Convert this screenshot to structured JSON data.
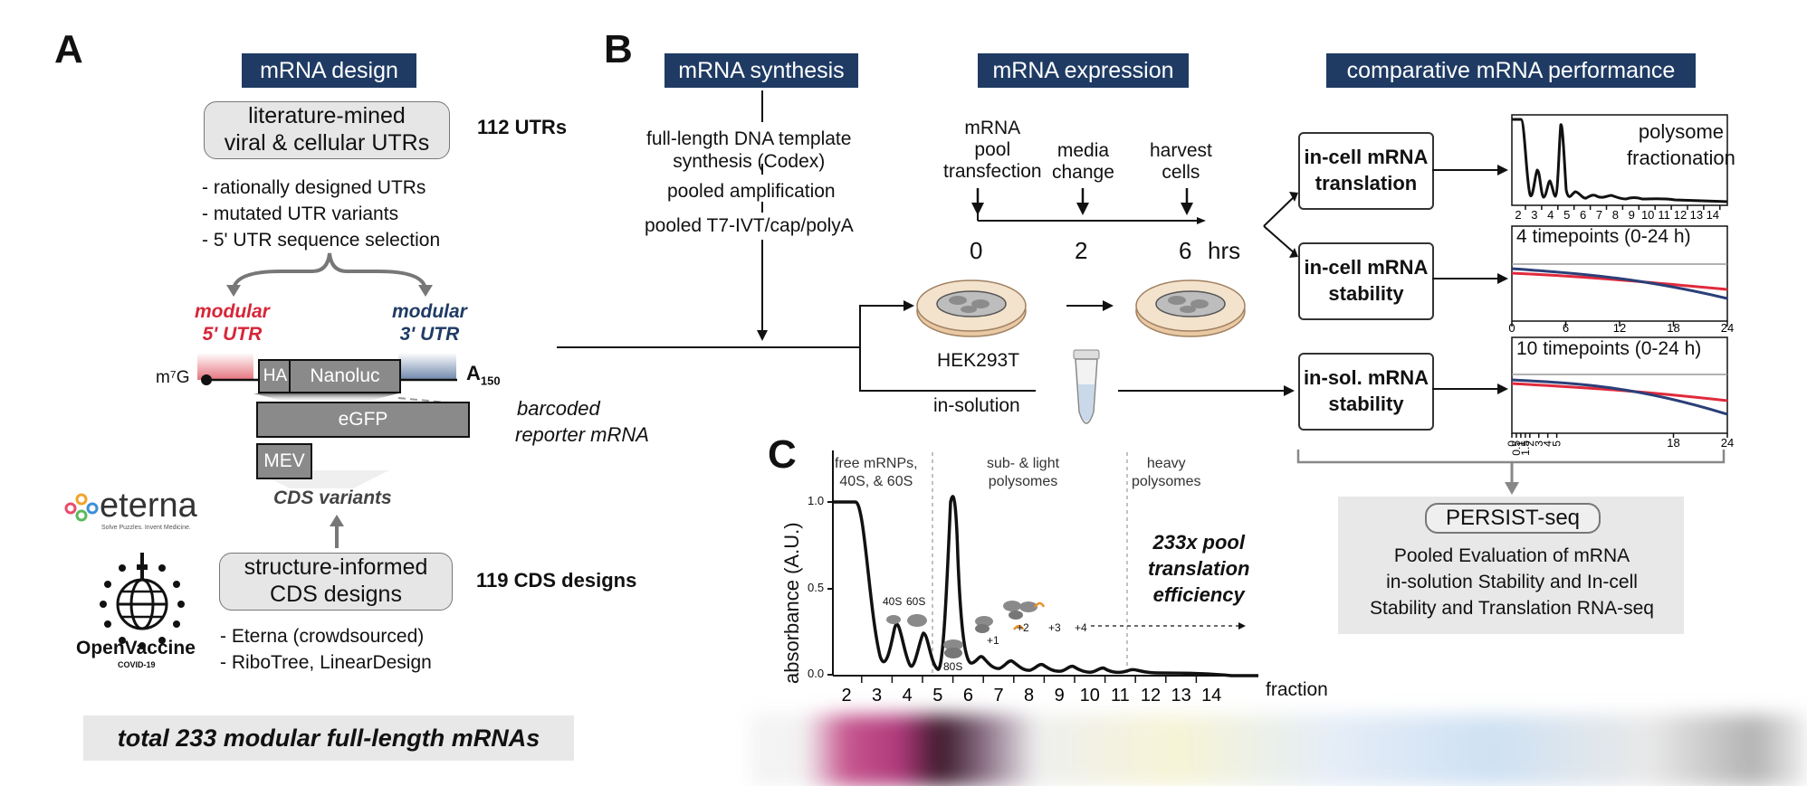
{
  "panels": {
    "a": "A",
    "b": "B",
    "c": "C"
  },
  "design": {
    "header": "mRNA design",
    "lit_box": [
      "literature-mined",
      "viral & cellular UTRs"
    ],
    "utr_count": "112 UTRs",
    "bullets": [
      "- rationally designed UTRs",
      "- mutated UTR variants",
      "- 5' UTR sequence selection"
    ],
    "mod5": [
      "modular",
      "5' UTR"
    ],
    "mod3": [
      "modular",
      "3' UTR"
    ],
    "cap": "m⁷G",
    "ha": "HA",
    "nanoluc": "Nanoluc",
    "polya": "A",
    "polya_sub": "150",
    "egfp": "eGFP",
    "mev": "MEV",
    "barcoded": [
      "barcoded",
      "reporter mRNA"
    ],
    "cds_variants": "CDS variants",
    "eterna_logo": "eterna",
    "eterna_tag": "Solve Puzzles. Invent Medicine.",
    "ov_logo": "OpenVaccine",
    "ov_sub": "COVID-19",
    "struct_box": [
      "structure-informed",
      "CDS designs"
    ],
    "cds_count": "119 CDS designs",
    "cds_bullets": [
      "- Eterna (crowdsourced)",
      "- RiboTree, LinearDesign"
    ],
    "total": "total 233 modular full-length mRNAs"
  },
  "synthesis": {
    "header": "mRNA synthesis",
    "lines": [
      "full-length DNA template",
      "synthesis (Codex)",
      "pooled amplification",
      "pooled T7-IVT/cap/polyA"
    ]
  },
  "expression": {
    "header": "mRNA expression",
    "events": [
      [
        "mRNA",
        "pool",
        "transfection"
      ],
      [
        "media",
        "change"
      ],
      [
        "harvest",
        "cells"
      ]
    ],
    "ticks": [
      "0",
      "2",
      "6"
    ],
    "unit": "hrs",
    "cell_label": "HEK293T",
    "solution_label": "in-solution"
  },
  "performance": {
    "header": "comparative mRNA performance",
    "boxes": [
      [
        "in-cell mRNA",
        "translation"
      ],
      [
        "in-cell mRNA",
        "stability"
      ],
      [
        "in-sol. mRNA",
        "stability"
      ]
    ],
    "poly_title": [
      "polysome",
      "fractionation"
    ],
    "poly_ticks": [
      "2",
      "3",
      "4",
      "5",
      "6",
      "7",
      "8",
      "9",
      "10",
      "11",
      "12",
      "13",
      "14"
    ],
    "stab1_title": "4 timepoints (0-24 h)",
    "stab1_ticks": [
      "0",
      "6",
      "12",
      "18",
      "24"
    ],
    "stab2_title": "10 timepoints (0-24 h)",
    "stab2_ticks": [
      "0",
      "0.5",
      "1",
      "1.5",
      "2",
      "3",
      "4",
      "5",
      "18",
      "24"
    ],
    "line_colors": {
      "red": "#e02a3c",
      "blue": "#2b3f78"
    }
  },
  "persist": {
    "title": "PERSIST-seq",
    "lines": [
      "Pooled Evaluation of mRNA",
      "in-solution Stability and In-cell",
      "Stability and Translation RNA-seq"
    ]
  },
  "chart_c": {
    "ylabel": "absorbance (A.U.)",
    "yticks": [
      "0.0",
      "0.5",
      "1.0"
    ],
    "xlabel": "fraction",
    "xticks": [
      "2",
      "3",
      "4",
      "5",
      "6",
      "7",
      "8",
      "9",
      "10",
      "11",
      "12",
      "13",
      "14"
    ],
    "regions": [
      [
        "free mRNPs,",
        "40S, & 60S"
      ],
      [
        "sub- & light",
        "polysomes"
      ],
      [
        "heavy",
        "polysomes"
      ]
    ],
    "annot": [
      "233x pool",
      "translation",
      "efficiency"
    ],
    "subunits": {
      "s40": "40S",
      "s60": "60S",
      "s80": "80S",
      "p1": "+1",
      "p2": "+2",
      "p3": "+3",
      "p4": "+4"
    }
  }
}
